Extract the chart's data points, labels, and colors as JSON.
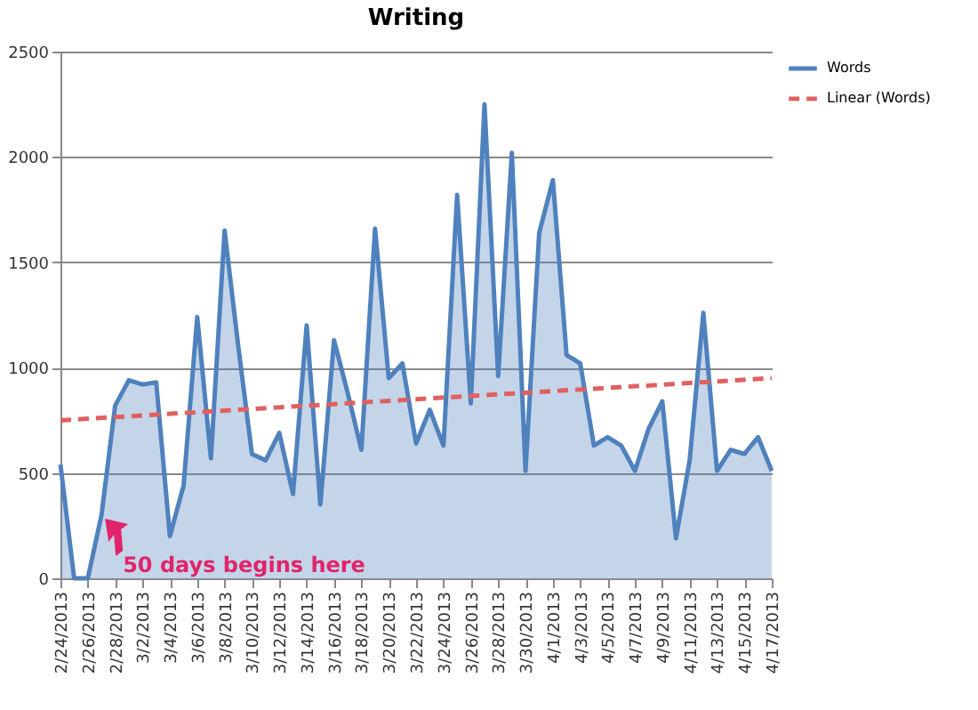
{
  "chart_data": {
    "type": "area",
    "title": "Writing",
    "x": [
      "2013-02-24",
      "2013-02-25",
      "2013-02-26",
      "2013-02-27",
      "2013-02-28",
      "2013-03-01",
      "2013-03-02",
      "2013-03-03",
      "2013-03-04",
      "2013-03-05",
      "2013-03-06",
      "2013-03-07",
      "2013-03-08",
      "2013-03-09",
      "2013-03-10",
      "2013-03-11",
      "2013-03-12",
      "2013-03-13",
      "2013-03-14",
      "2013-03-15",
      "2013-03-16",
      "2013-03-17",
      "2013-03-18",
      "2013-03-19",
      "2013-03-20",
      "2013-03-21",
      "2013-03-22",
      "2013-03-23",
      "2013-03-24",
      "2013-03-25",
      "2013-03-26",
      "2013-03-27",
      "2013-03-28",
      "2013-03-29",
      "2013-03-30",
      "2013-03-31",
      "2013-04-01",
      "2013-04-02",
      "2013-04-03",
      "2013-04-04",
      "2013-04-05",
      "2013-04-06",
      "2013-04-07",
      "2013-04-08",
      "2013-04-09",
      "2013-04-10",
      "2013-04-11",
      "2013-04-12",
      "2013-04-13",
      "2013-04-14",
      "2013-04-15",
      "2013-04-16",
      "2013-04-17"
    ],
    "series": [
      {
        "name": "Words",
        "type": "area",
        "color": "#4f81bd",
        "values": [
          540,
          0,
          0,
          300,
          820,
          940,
          920,
          930,
          200,
          440,
          1240,
          570,
          1650,
          1100,
          590,
          560,
          690,
          400,
          1200,
          350,
          1130,
          880,
          610,
          1660,
          950,
          1020,
          640,
          800,
          630,
          1820,
          830,
          2250,
          960,
          2020,
          510,
          1640,
          1890,
          1060,
          1020,
          630,
          670,
          630,
          510,
          710,
          840,
          190,
          560,
          1260,
          510,
          610,
          590,
          670,
          510
        ]
      },
      {
        "name": "Linear (Words)",
        "type": "line",
        "color": "#e06060",
        "line_style": "dashed",
        "x": [
          "2013-02-24",
          "2013-04-17"
        ],
        "values": [
          750,
          950
        ]
      }
    ],
    "xlim": [
      "2013-02-24",
      "2013-04-17"
    ],
    "xticks": [
      {
        "value": "2013-02-24",
        "label": "2/24/2013"
      },
      {
        "value": "2013-02-26",
        "label": "2/26/2013"
      },
      {
        "value": "2013-02-28",
        "label": "2/28/2013"
      },
      {
        "value": "2013-03-02",
        "label": "3/2/2013"
      },
      {
        "value": "2013-03-04",
        "label": "3/4/2013"
      },
      {
        "value": "2013-03-06",
        "label": "3/6/2013"
      },
      {
        "value": "2013-03-08",
        "label": "3/8/2013"
      },
      {
        "value": "2013-03-10",
        "label": "3/10/2013"
      },
      {
        "value": "2013-03-12",
        "label": "3/12/2013"
      },
      {
        "value": "2013-03-14",
        "label": "3/14/2013"
      },
      {
        "value": "2013-03-16",
        "label": "3/16/2013"
      },
      {
        "value": "2013-03-18",
        "label": "3/18/2013"
      },
      {
        "value": "2013-03-20",
        "label": "3/20/2013"
      },
      {
        "value": "2013-03-22",
        "label": "3/22/2013"
      },
      {
        "value": "2013-03-24",
        "label": "3/24/2013"
      },
      {
        "value": "2013-03-26",
        "label": "3/26/2013"
      },
      {
        "value": "2013-03-28",
        "label": "3/28/2013"
      },
      {
        "value": "2013-03-30",
        "label": "3/30/2013"
      },
      {
        "value": "2013-04-01",
        "label": "4/1/2013"
      },
      {
        "value": "2013-04-03",
        "label": "4/3/2013"
      },
      {
        "value": "2013-04-05",
        "label": "4/5/2013"
      },
      {
        "value": "2013-04-07",
        "label": "4/7/2013"
      },
      {
        "value": "2013-04-09",
        "label": "4/9/2013"
      },
      {
        "value": "2013-04-11",
        "label": "4/11/2013"
      },
      {
        "value": "2013-04-13",
        "label": "4/13/2013"
      },
      {
        "value": "2013-04-15",
        "label": "4/15/2013"
      },
      {
        "value": "2013-04-17",
        "label": "4/17/2013"
      }
    ],
    "ylim": [
      0,
      2500
    ],
    "yticks": [
      0,
      500,
      1000,
      1500,
      2000,
      2500
    ],
    "grid": "y",
    "legend": "right",
    "annotations": [
      {
        "text": "50 days begins here",
        "x": "2013-02-27",
        "y": 300
      }
    ]
  }
}
